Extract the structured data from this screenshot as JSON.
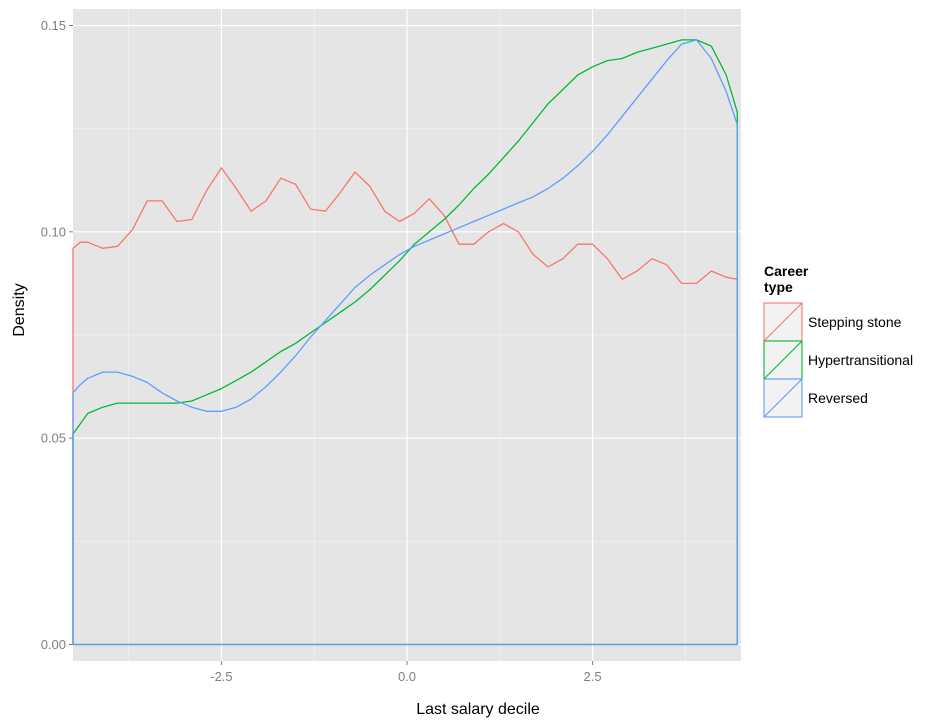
{
  "chart_data": {
    "type": "line",
    "xlabel": "Last salary decile",
    "ylabel": "Density",
    "xlim": [
      -4.5,
      4.5
    ],
    "ylim": [
      -0.004,
      0.154
    ],
    "x_ticks": [
      -2.5,
      0.0,
      2.5
    ],
    "x_tick_labels": [
      "-2.5",
      "0.0",
      "2.5"
    ],
    "y_ticks": [
      0.0,
      0.05,
      0.1,
      0.15
    ],
    "y_tick_labels": [
      "0.00",
      "0.05",
      "0.10",
      "0.15"
    ],
    "grid": true,
    "background": "#e5e5e5",
    "legend": {
      "title_lines": [
        "Career",
        "type"
      ],
      "position": "right"
    },
    "series": [
      {
        "name": "Stepping stone",
        "color": "#f8766d",
        "x": [
          -4.5,
          -4.4,
          -4.3,
          -4.1,
          -3.9,
          -3.7,
          -3.5,
          -3.3,
          -3.1,
          -2.9,
          -2.7,
          -2.5,
          -2.3,
          -2.1,
          -1.9,
          -1.7,
          -1.5,
          -1.3,
          -1.1,
          -0.9,
          -0.7,
          -0.5,
          -0.3,
          -0.1,
          0.1,
          0.3,
          0.5,
          0.7,
          0.9,
          1.1,
          1.3,
          1.5,
          1.7,
          1.9,
          2.1,
          2.3,
          2.5,
          2.7,
          2.9,
          3.1,
          3.3,
          3.5,
          3.7,
          3.9,
          4.1,
          4.3,
          4.45
        ],
        "y": [
          0.096,
          0.0975,
          0.0975,
          0.096,
          0.0965,
          0.1005,
          0.1075,
          0.1075,
          0.1025,
          0.103,
          0.11,
          0.1155,
          0.1105,
          0.105,
          0.1075,
          0.113,
          0.1115,
          0.1055,
          0.105,
          0.1095,
          0.1145,
          0.111,
          0.105,
          0.1025,
          0.1045,
          0.108,
          0.104,
          0.097,
          0.097,
          0.1,
          0.102,
          0.1,
          0.0945,
          0.0915,
          0.0935,
          0.097,
          0.097,
          0.0935,
          0.0885,
          0.0905,
          0.0935,
          0.092,
          0.0875,
          0.0875,
          0.0905,
          0.089,
          0.0885
        ]
      },
      {
        "name": "Hypertransitional",
        "color": "#00ba38",
        "x": [
          -4.5,
          -4.3,
          -4.1,
          -3.9,
          -3.7,
          -3.5,
          -3.3,
          -3.1,
          -2.9,
          -2.7,
          -2.5,
          -2.3,
          -2.1,
          -1.9,
          -1.7,
          -1.5,
          -1.3,
          -1.1,
          -0.9,
          -0.7,
          -0.5,
          -0.3,
          -0.1,
          0.1,
          0.3,
          0.5,
          0.7,
          0.9,
          1.1,
          1.3,
          1.5,
          1.7,
          1.9,
          2.1,
          2.3,
          2.5,
          2.7,
          2.9,
          3.1,
          3.3,
          3.5,
          3.7,
          3.9,
          4.1,
          4.3,
          4.45
        ],
        "y": [
          0.051,
          0.056,
          0.0575,
          0.0585,
          0.0585,
          0.0585,
          0.0585,
          0.0585,
          0.059,
          0.0605,
          0.062,
          0.064,
          0.066,
          0.0685,
          0.071,
          0.073,
          0.0755,
          0.078,
          0.0805,
          0.083,
          0.086,
          0.0895,
          0.093,
          0.097,
          0.1,
          0.103,
          0.1065,
          0.1105,
          0.114,
          0.118,
          0.122,
          0.1265,
          0.131,
          0.1345,
          0.138,
          0.14,
          0.1415,
          0.142,
          0.1435,
          0.1445,
          0.1455,
          0.1465,
          0.1465,
          0.145,
          0.138,
          0.129
        ]
      },
      {
        "name": "Reversed",
        "color": "#619cff",
        "x": [
          -4.5,
          -4.4,
          -4.3,
          -4.1,
          -3.9,
          -3.7,
          -3.5,
          -3.3,
          -3.1,
          -2.9,
          -2.7,
          -2.5,
          -2.3,
          -2.1,
          -1.9,
          -1.7,
          -1.5,
          -1.3,
          -1.1,
          -0.9,
          -0.7,
          -0.5,
          -0.3,
          -0.1,
          0.1,
          0.3,
          0.5,
          0.7,
          0.9,
          1.1,
          1.3,
          1.5,
          1.7,
          1.9,
          2.1,
          2.3,
          2.5,
          2.7,
          2.9,
          3.1,
          3.3,
          3.5,
          3.7,
          3.9,
          4.1,
          4.3,
          4.45
        ],
        "y": [
          0.061,
          0.063,
          0.0645,
          0.066,
          0.066,
          0.065,
          0.0635,
          0.061,
          0.059,
          0.0575,
          0.0565,
          0.0565,
          0.0575,
          0.0595,
          0.0625,
          0.066,
          0.07,
          0.0745,
          0.0785,
          0.0825,
          0.0865,
          0.0895,
          0.092,
          0.0945,
          0.0965,
          0.098,
          0.0995,
          0.101,
          0.1025,
          0.104,
          0.1055,
          0.107,
          0.1085,
          0.1105,
          0.113,
          0.116,
          0.1195,
          0.1235,
          0.128,
          0.1325,
          0.137,
          0.1415,
          0.1455,
          0.1465,
          0.142,
          0.134,
          0.126
        ]
      }
    ]
  }
}
